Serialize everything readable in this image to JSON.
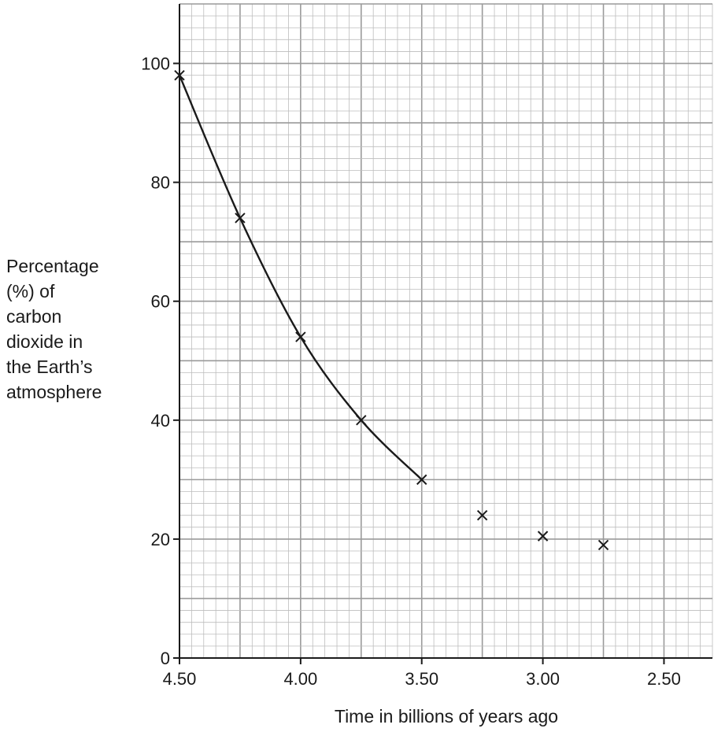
{
  "chart_data": {
    "type": "scatter",
    "xlabel": "Time in billions of years ago",
    "ylabel": "Percentage (%) of carbon dioxide in the Earth’s atmosphere",
    "ylabel_lines": [
      "Percentage",
      "(%) of",
      "carbon",
      "dioxide in",
      "the Earth’s",
      "atmosphere"
    ],
    "xlim": [
      4.5,
      2.3
    ],
    "ylim": [
      0,
      110
    ],
    "x_reversed": true,
    "x_ticks": [
      4.5,
      4.0,
      3.5,
      3.0,
      2.5
    ],
    "x_tick_labels": [
      "4.50",
      "4.00",
      "3.50",
      "3.00",
      "2.50"
    ],
    "y_ticks": [
      0,
      20,
      40,
      60,
      80,
      100
    ],
    "y_tick_labels": [
      "0",
      "20",
      "40",
      "60",
      "80",
      "100"
    ],
    "grid": true,
    "marker": "x",
    "series": [
      {
        "x": [
          4.5,
          4.25,
          4.0,
          3.75,
          3.5,
          3.25,
          3.0,
          2.75
        ],
        "y": [
          98,
          74,
          54,
          40,
          30,
          24,
          20.5,
          19
        ],
        "curve_through_first_n": 5
      }
    ]
  }
}
